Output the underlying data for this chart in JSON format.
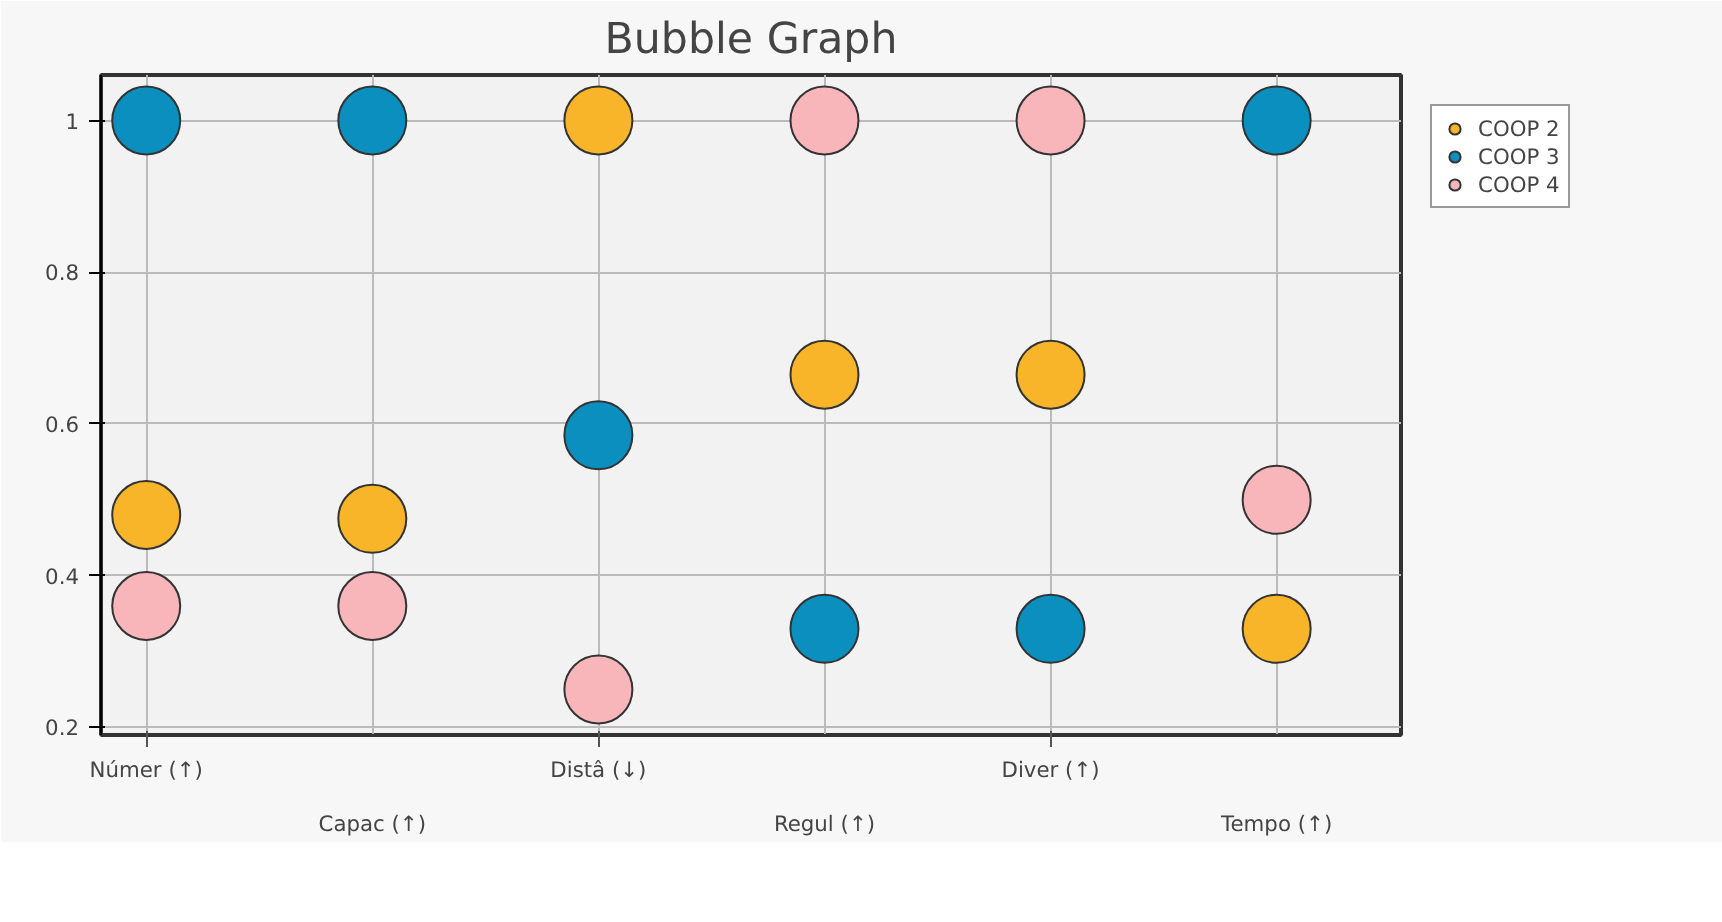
{
  "chart_data": {
    "type": "bubble",
    "title": "Bubble Graph",
    "categories": [
      "Númer (↑)",
      "Capac (↑)",
      "Distâ (↓)",
      "Regul (↑)",
      "Diver (↑)",
      "Tempo (↑)"
    ],
    "series": [
      {
        "name": "COOP 2",
        "color": "#f9b52a",
        "values": [
          0.48,
          0.475,
          1,
          0.665,
          0.665,
          0.33
        ],
        "sizes": [
          1,
          1,
          1,
          1,
          1,
          1
        ]
      },
      {
        "name": "COOP 3",
        "color": "#0a8fbf",
        "values": [
          1,
          1,
          0.585,
          0.33,
          0.33,
          1
        ],
        "sizes": [
          1,
          1,
          1,
          1,
          1,
          1
        ]
      },
      {
        "name": "COOP 4",
        "color": "#f8b6bb",
        "values": [
          0.36,
          0.36,
          0.25,
          1,
          1,
          0.5
        ],
        "sizes": [
          1,
          1,
          1,
          1,
          1,
          1
        ]
      }
    ],
    "ylim": [
      0.19,
      1.06
    ],
    "yticks": [
      0.2,
      0.4,
      0.6,
      0.8,
      1
    ],
    "grid": true,
    "legend": "top right"
  }
}
